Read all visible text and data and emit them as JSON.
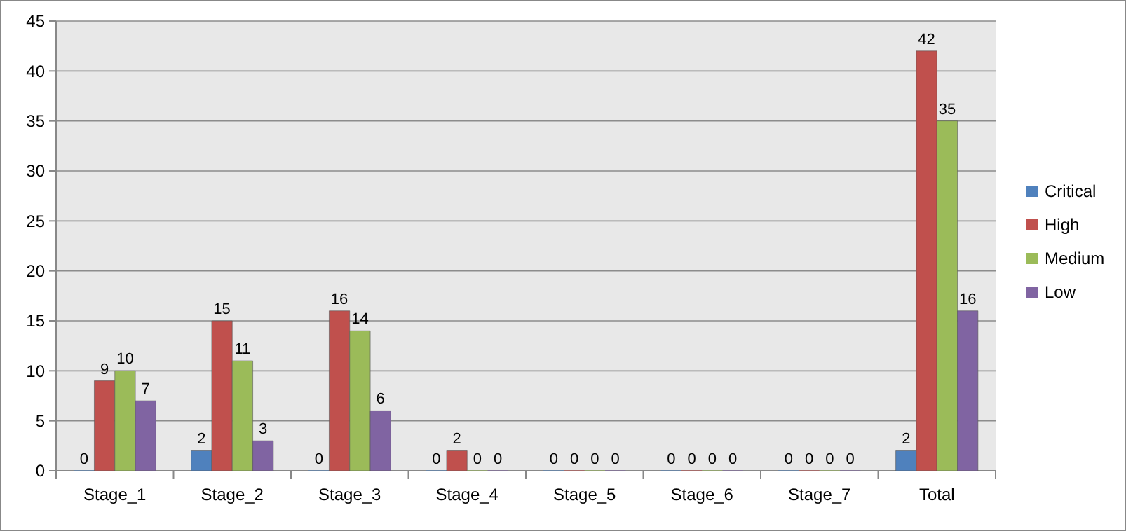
{
  "chart_data": {
    "type": "bar",
    "categories": [
      "Stage_1",
      "Stage_2",
      "Stage_3",
      "Stage_4",
      "Stage_5",
      "Stage_6",
      "Stage_7",
      "Total"
    ],
    "series": [
      {
        "name": "Critical",
        "color": "#4f81bd",
        "values": [
          0,
          2,
          0,
          0,
          0,
          0,
          0,
          2
        ]
      },
      {
        "name": "High",
        "color": "#c0504d",
        "values": [
          9,
          15,
          16,
          2,
          0,
          0,
          0,
          42
        ]
      },
      {
        "name": "Medium",
        "color": "#9bbb59",
        "values": [
          10,
          11,
          14,
          0,
          0,
          0,
          0,
          35
        ]
      },
      {
        "name": "Low",
        "color": "#8064a2",
        "values": [
          7,
          3,
          6,
          0,
          0,
          0,
          0,
          16
        ]
      }
    ],
    "ylim": [
      0,
      45
    ],
    "yticks": [
      0,
      5,
      10,
      15,
      20,
      25,
      30,
      35,
      40,
      45
    ],
    "grid": "y",
    "legend": "right",
    "data_labels": true
  }
}
